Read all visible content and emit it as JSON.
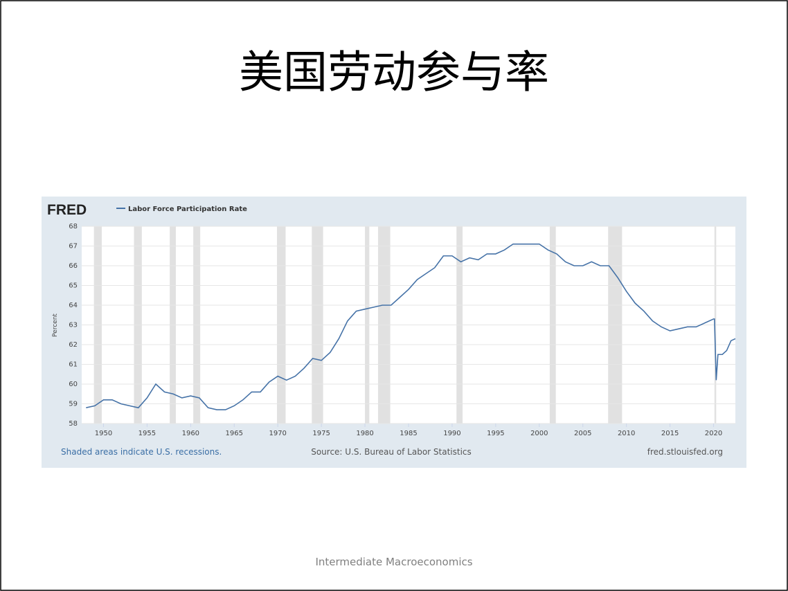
{
  "slide_title": "美国劳动参与率",
  "footer": "Intermediate Macroeconomics",
  "chart_data": {
    "type": "line",
    "logo": "FRED",
    "ylabel": "Percent",
    "note_left": "Shaded areas indicate U.S. recessions.",
    "note_center": "Source: U.S. Bureau of Labor Statistics",
    "note_right": "fred.stlouisfed.org",
    "x": [
      1948,
      1949,
      1950,
      1951,
      1952,
      1953,
      1954,
      1955,
      1956,
      1957,
      1958,
      1959,
      1960,
      1961,
      1962,
      1963,
      1964,
      1965,
      1966,
      1967,
      1968,
      1969,
      1970,
      1971,
      1972,
      1973,
      1974,
      1975,
      1976,
      1977,
      1978,
      1979,
      1980,
      1981,
      1982,
      1983,
      1984,
      1985,
      1986,
      1987,
      1988,
      1989,
      1990,
      1991,
      1992,
      1993,
      1994,
      1995,
      1996,
      1997,
      1998,
      1999,
      2000,
      2001,
      2002,
      2003,
      2004,
      2005,
      2006,
      2007,
      2008,
      2009,
      2010,
      2011,
      2012,
      2013,
      2014,
      2015,
      2016,
      2017,
      2018,
      2019,
      2020,
      2020.1,
      2020.3,
      2020.5,
      2021,
      2021.5,
      2022,
      2022.5
    ],
    "series": [
      {
        "name": "Labor Force Participation Rate",
        "color": "#4572a7",
        "values": [
          58.8,
          58.9,
          59.2,
          59.2,
          59.0,
          58.9,
          58.8,
          59.3,
          60.0,
          59.6,
          59.5,
          59.3,
          59.4,
          59.3,
          58.8,
          58.7,
          58.7,
          58.9,
          59.2,
          59.6,
          59.6,
          60.1,
          60.4,
          60.2,
          60.4,
          60.8,
          61.3,
          61.2,
          61.6,
          62.3,
          63.2,
          63.7,
          63.8,
          63.9,
          64.0,
          64.0,
          64.4,
          64.8,
          65.3,
          65.6,
          65.9,
          66.5,
          66.5,
          66.2,
          66.4,
          66.3,
          66.6,
          66.6,
          66.8,
          67.1,
          67.1,
          67.1,
          67.1,
          66.8,
          66.6,
          66.2,
          66.0,
          66.0,
          66.2,
          66.0,
          66.0,
          65.4,
          64.7,
          64.1,
          63.7,
          63.2,
          62.9,
          62.7,
          62.8,
          62.9,
          62.9,
          63.1,
          63.3,
          63.3,
          60.2,
          61.5,
          61.5,
          61.7,
          62.2,
          62.3
        ]
      }
    ],
    "recessions": [
      [
        1948.9,
        1949.8
      ],
      [
        1953.5,
        1954.4
      ],
      [
        1957.6,
        1958.3
      ],
      [
        1960.3,
        1961.1
      ],
      [
        1969.9,
        1970.9
      ],
      [
        1973.9,
        1975.2
      ],
      [
        1980.0,
        1980.5
      ],
      [
        1981.5,
        1982.9
      ],
      [
        1990.5,
        1991.2
      ],
      [
        2001.2,
        2001.9
      ],
      [
        2007.9,
        2009.5
      ],
      [
        2020.1,
        2020.3
      ]
    ],
    "xlim": [
      1947.5,
      2022.5
    ],
    "ylim": [
      58,
      68
    ],
    "xticks": [
      1950,
      1955,
      1960,
      1965,
      1970,
      1975,
      1980,
      1985,
      1990,
      1995,
      2000,
      2005,
      2010,
      2015,
      2020
    ],
    "yticks": [
      58,
      59,
      60,
      61,
      62,
      63,
      64,
      65,
      66,
      67,
      68
    ],
    "grid": true
  }
}
